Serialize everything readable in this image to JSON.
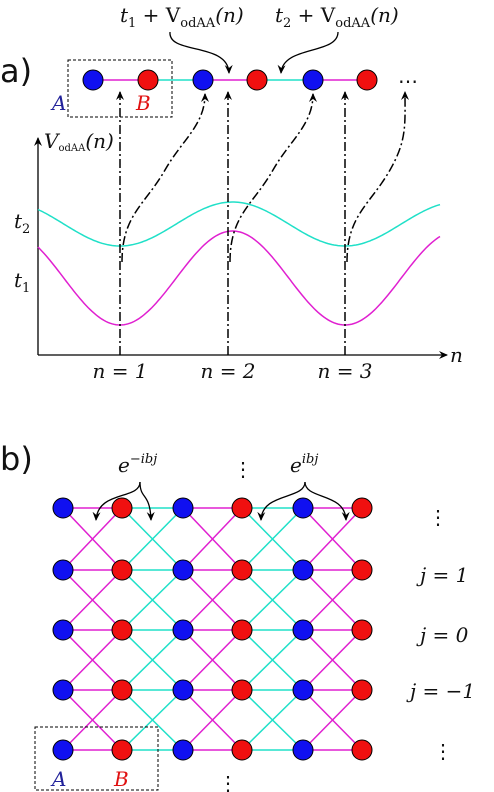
{
  "panel_a": {
    "label": "a)",
    "annotations": [
      {
        "base": "t",
        "sub": "1",
        "plus": " + V",
        "vsub": "odAA",
        "arg": "(n)"
      },
      {
        "base": "t",
        "sub": "2",
        "plus": " + V",
        "vsub": "odAA",
        "arg": "(n)"
      }
    ],
    "cell": {
      "a": "A",
      "b": "B"
    },
    "ellipsis": "⋯",
    "y_axis": {
      "base": "V",
      "sub": "odAA",
      "arg": "(n)"
    },
    "levels": [
      {
        "base": "t",
        "sub": "2"
      },
      {
        "base": "t",
        "sub": "1"
      }
    ],
    "x_axis_label": "n",
    "sites": [
      "n = 1",
      "n = 2",
      "n = 3"
    ]
  },
  "panel_b": {
    "label": "b)",
    "phases": [
      {
        "base": "e",
        "sup": "−ibj"
      },
      {
        "base": "e",
        "sup": "ibj"
      }
    ],
    "rows": [
      "j = 1",
      "j = 0",
      "j = −1"
    ],
    "cell": {
      "a": "A",
      "b": "B"
    },
    "vdots": "⋮"
  }
}
